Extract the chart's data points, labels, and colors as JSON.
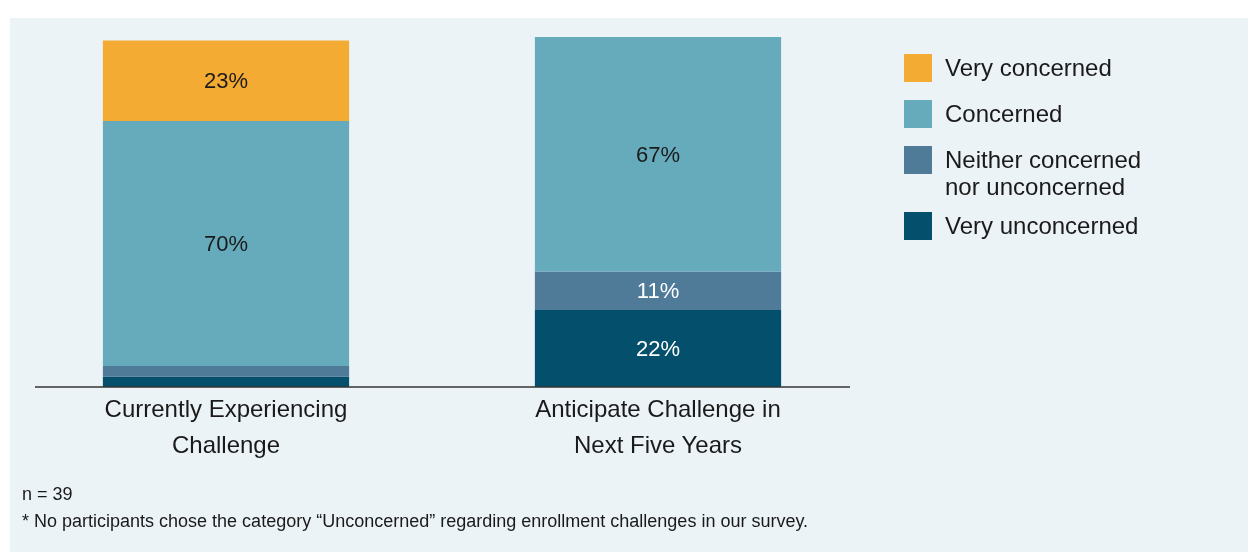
{
  "chart_data": {
    "type": "bar",
    "stacked": true,
    "categories": [
      "Currently Experiencing Challenge",
      "Anticipate Challenge in Next Five Years"
    ],
    "series": [
      {
        "name": "Very unconcerned",
        "color": "#044f6b",
        "values": [
          3,
          22
        ],
        "value_labels": [
          null,
          "22%"
        ]
      },
      {
        "name": "Neither concerned nor unconcerned",
        "color": "#4f7b99",
        "values": [
          3,
          11
        ],
        "value_labels": [
          null,
          "11%"
        ]
      },
      {
        "name": "Concerned",
        "color": "#66abbb",
        "values": [
          70,
          67
        ],
        "value_labels": [
          "70%",
          "67%"
        ]
      },
      {
        "name": "Very concerned",
        "color": "#f3ab33",
        "values": [
          23,
          0
        ],
        "value_labels": [
          "23%",
          null
        ]
      }
    ],
    "ylim": [
      0,
      100
    ],
    "tick_labels": "x",
    "legend": "top right",
    "annotations": [
      "n = 39",
      "* No participants chose the category “Unconcerned” regarding enrollment challenges in our survey."
    ]
  }
}
